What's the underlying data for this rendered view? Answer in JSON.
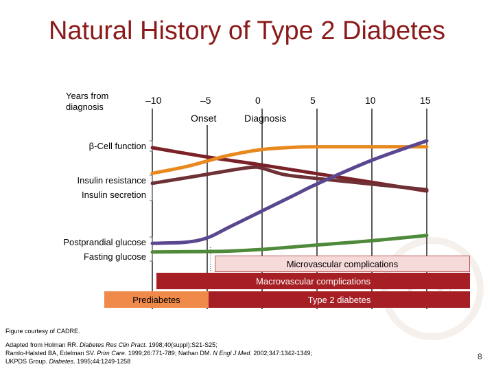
{
  "slide": {
    "title": "Natural History of Type 2 Diabetes",
    "years_label": "Years from diagnosis",
    "onset": "Onset",
    "diagnosis": "Diagnosis",
    "slide_number": "8"
  },
  "row_labels": {
    "beta_cell": "β-Cell function",
    "insulin_resistance": "Insulin resistance",
    "insulin_secretion": "Insulin secretion",
    "postprandial": "Postprandial glucose",
    "fasting": "Fasting glucose"
  },
  "bars": {
    "micro": "Microvascular complications",
    "macro": "Macrovascular complications",
    "prediabetes": "Prediabetes",
    "type2": "Type 2 diabetes"
  },
  "footer": {
    "courtesy": "Figure courtesy of CADRE.",
    "ref1_a": "Adapted from Holman RR. ",
    "ref1_journal": "Diabetes Res Clin Pract",
    "ref1_b": ". 1998;40(suppl):S21-S25;",
    "ref2_a": "Ramlo-Halsted BA, Edelman SV. ",
    "ref2_journal1": "Prim Care",
    "ref2_b": ". 1999;26:771-789; Nathan DM. ",
    "ref2_journal2": "N Engl J Med",
    "ref2_c": ". 2002;347:1342-1349;",
    "ref3_a": "UKPDS Group. ",
    "ref3_journal": "Diabetes",
    "ref3_b": ". 1995;44:1249-1258"
  },
  "colors": {
    "title": "#8b1a1a",
    "beta_cell": "#7a2228",
    "insulin_resistance": "#e8891e",
    "insulin_secretion": "#6e3136",
    "postprandial": "#5b4690",
    "fasting": "#4f8a3a",
    "micro_bar": "#f6d9d9",
    "macro_bar": "#a51f24",
    "prediabetes_bar": "#f08a4b",
    "type2_bar": "#a51f24"
  },
  "chart_data": {
    "type": "line",
    "xlabel": "Years from diagnosis",
    "x_ticks": [
      "–10",
      "–5",
      "0",
      "5",
      "10",
      "15"
    ],
    "xlim": [
      -10,
      15
    ],
    "series": [
      {
        "name": "β-Cell function",
        "x": [
          -10,
          -5,
          0,
          5,
          10,
          15
        ],
        "y": [
          100,
          85,
          72,
          58,
          44,
          30
        ]
      },
      {
        "name": "Insulin resistance",
        "x": [
          -10,
          -7,
          -5,
          -3,
          0,
          3,
          5,
          10,
          15
        ],
        "y": [
          28,
          45,
          60,
          75,
          90,
          96,
          97,
          97,
          97
        ]
      },
      {
        "name": "Insulin secretion",
        "x": [
          -10,
          -6,
          -3,
          -1,
          0,
          2,
          5,
          10,
          15
        ],
        "y": [
          40,
          58,
          72,
          80,
          78,
          62,
          52,
          38,
          24
        ]
      },
      {
        "name": "Postprandial glucose",
        "x": [
          -10,
          -7,
          -5,
          -3,
          0,
          3,
          5,
          10,
          15
        ],
        "y": [
          5,
          6,
          10,
          20,
          35,
          50,
          60,
          82,
          100
        ]
      },
      {
        "name": "Fasting glucose",
        "x": [
          -10,
          -5,
          -3,
          0,
          3,
          5,
          10,
          15
        ],
        "y": [
          2,
          3,
          4,
          8,
          14,
          18,
          28,
          40
        ]
      }
    ]
  }
}
